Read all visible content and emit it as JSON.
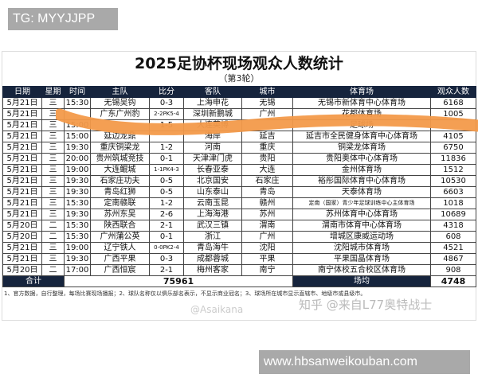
{
  "overlay_tag": "TG: MYYJJPP",
  "title": "2025足协杯现场观众人数统计",
  "subtitle": "（第3轮）",
  "headers": [
    "日期",
    "星期",
    "时间",
    "主队",
    "比分",
    "客队",
    "城市",
    "体育场",
    "观众人数"
  ],
  "rows": [
    [
      "5月21日",
      "三",
      "15:30",
      "无锡吴钩",
      "0-3",
      "上海申花",
      "无锡",
      "无锡市新体育中心体育场",
      "6168"
    ],
    [
      "5月21日",
      "三",
      "",
      "广东广州豹",
      "2-2PK5-4",
      "深圳新鹏城",
      "广州",
      "花都体育场",
      "1005"
    ],
    [
      "5月21日",
      "三",
      "15:00",
      "",
      "1-5",
      "大连英博",
      "",
      "足球场",
      ""
    ],
    [
      "5月21日",
      "三",
      "15:00",
      "延边龙鼎",
      "",
      "海岸",
      "延吉",
      "延吉市全民健身体育中心体育场",
      "4105"
    ],
    [
      "5月21日",
      "三",
      "19:30",
      "重庆铜梁龙",
      "1-2",
      "河南",
      "重庆",
      "铜梁龙体育场",
      "6750"
    ],
    [
      "5月21日",
      "三",
      "20:00",
      "贵州筑城竞技",
      "0-1",
      "天津津门虎",
      "贵阳",
      "贵阳奥体中心体育场",
      "11836"
    ],
    [
      "5月21日",
      "三",
      "19:00",
      "大连鲲城",
      "1-1PK4-3",
      "长春亚泰",
      "大连",
      "金州体育场",
      "1512"
    ],
    [
      "5月21日",
      "三",
      "19:30",
      "石家庄功夫",
      "0-5",
      "北京国安",
      "石家庄",
      "裕彤国际体育中心体育场",
      "10530"
    ],
    [
      "5月21日",
      "三",
      "19:30",
      "青岛红狮",
      "0-5",
      "山东泰山",
      "青岛",
      "天泰体育场",
      "6603"
    ],
    [
      "5月21日",
      "三",
      "15:30",
      "定南赣联",
      "1-2",
      "云南玉昆",
      "赣州",
      "定南（国家）青少年足球训练中心主体育场",
      "1018"
    ],
    [
      "5月21日",
      "三",
      "19:30",
      "苏州东吴",
      "2-6",
      "上海海港",
      "苏州",
      "苏州体育中心体育场",
      "10689"
    ],
    [
      "5月20日",
      "二",
      "15:30",
      "陕西联合",
      "2-1",
      "武汉三镇",
      "渭南",
      "渭南市体育中心体育场",
      "4318"
    ],
    [
      "5月20日",
      "二",
      "15:30",
      "广州蒲公英",
      "0-1",
      "浙江",
      "广州",
      "增城区康威运动场",
      "608"
    ],
    [
      "5月21日",
      "三",
      "19:00",
      "辽宁铁人",
      "0-0PK2-4",
      "青岛海牛",
      "沈阳",
      "沈阳城市体育场",
      "4521"
    ],
    [
      "5月21日",
      "三",
      "19:30",
      "广西平果",
      "0-3",
      "成都蓉城",
      "平果",
      "平果国晶体育场",
      "4867"
    ],
    [
      "5月20日",
      "二",
      "17:00",
      "广西恒宸",
      "2-1",
      "梅州客家",
      "南宁",
      "南宁体校五合校区体育场",
      "908"
    ]
  ],
  "totals": {
    "total_label": "合计",
    "total_value": "75961",
    "avg_label": "场均",
    "avg_value": "4748"
  },
  "footnote": "1、官方数据，自行整理，每场比赛现场播报；2、球队名称仅以俱乐部名表示，不显示商业冠名；3、球场所在城市显示直辖市、地级市或县级市。",
  "watermark_zhihu": "知乎 @来自L77奥特战士",
  "watermark_weibo": "@Asaikana",
  "site_label": "www.hbsanweikouban.com",
  "colors": {
    "header_bg": "#16243d",
    "scribble": "#f39a4a"
  }
}
